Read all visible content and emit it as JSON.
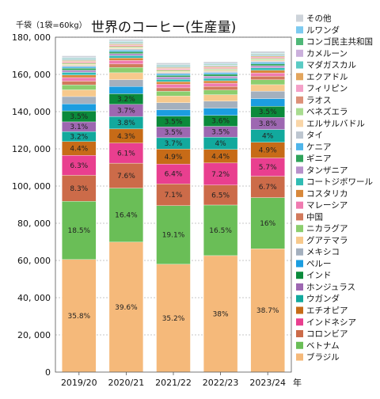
{
  "chart_data": {
    "type": "bar",
    "stacked": true,
    "title": "世界のコーヒー(生産量)",
    "ylabel": "千袋（1袋=60kg）",
    "xunit": "年",
    "categories": [
      "2019/20",
      "2020/21",
      "2021/22",
      "2022/23",
      "2023/24"
    ],
    "ylim": [
      0,
      180000
    ],
    "yticks": [
      0,
      20000,
      40000,
      60000,
      80000,
      100000,
      120000,
      140000,
      160000,
      180000
    ],
    "ytick_labels": [
      "0",
      "20, 000",
      "40, 000",
      "60, 000",
      "80, 000",
      "100, 000",
      "120, 000",
      "140, 000",
      "160, 000",
      "180, 000"
    ],
    "grid": true,
    "legend_position": "right",
    "series": [
      {
        "name": "ブラジル",
        "color": "#f5b97a",
        "values": [
          60500,
          69900,
          58000,
          62600,
          66300
        ],
        "labels": [
          "35.8%",
          "39.6%",
          "35.2%",
          "38%",
          "38.7%"
        ]
      },
      {
        "name": "ベトナム",
        "color": "#6abe57",
        "values": [
          31300,
          29000,
          31500,
          27200,
          27500
        ],
        "labels": [
          "18.5%",
          "16.4%",
          "19.1%",
          "16.5%",
          "16%"
        ]
      },
      {
        "name": "コロンビア",
        "color": "#cc6b49",
        "values": [
          14000,
          13400,
          11700,
          10700,
          11500
        ],
        "labels": [
          "8.3%",
          "7.6%",
          "7.1%",
          "6.5%",
          "6.7%"
        ]
      },
      {
        "name": "インドネシア",
        "color": "#e93f8f",
        "values": [
          10700,
          10800,
          10600,
          11900,
          9800
        ],
        "labels": [
          "6.3%",
          "6.1%",
          "6.4%",
          "7.2%",
          "5.7%"
        ]
      },
      {
        "name": "エチオピア",
        "color": "#c76b17",
        "values": [
          7400,
          7600,
          8100,
          7300,
          8400
        ],
        "labels": [
          "4.4%",
          "4.3%",
          "4.9%",
          "4.4%",
          "4.9%"
        ]
      },
      {
        "name": "ウガンダ",
        "color": "#12a99d",
        "values": [
          5400,
          6700,
          6100,
          6600,
          6900
        ],
        "labels": [
          "3.2%",
          "3.8%",
          "3.7%",
          "4%",
          "4%"
        ]
      },
      {
        "name": "ホンジュラス",
        "color": "#9d67b1",
        "values": [
          5200,
          6500,
          5800,
          5800,
          6500
        ],
        "labels": [
          "3.1%",
          "3.7%",
          "3.5%",
          "3.5%",
          "3.8%"
        ]
      },
      {
        "name": "インド",
        "color": "#0b8a3b",
        "values": [
          5900,
          5700,
          5800,
          5900,
          6000
        ],
        "labels": [
          "3.5%",
          "3.2%",
          "3.5%",
          "3.6%",
          "3.5%"
        ]
      },
      {
        "name": "ペルー",
        "color": "#1b9de0",
        "values": [
          3800,
          3900,
          3400,
          3800,
          4100
        ],
        "labels": []
      },
      {
        "name": "メキシコ",
        "color": "#a4b0be",
        "values": [
          3900,
          3700,
          3800,
          3800,
          4000
        ],
        "labels": []
      },
      {
        "name": "グアテマラ",
        "color": "#f7c98c",
        "values": [
          3600,
          3700,
          3600,
          3500,
          3500
        ],
        "labels": []
      },
      {
        "name": "ニカラグア",
        "color": "#8cce6e",
        "values": [
          2700,
          2800,
          2600,
          2500,
          2600
        ],
        "labels": []
      },
      {
        "name": "中国",
        "color": "#d27a5c",
        "values": [
          2000,
          1900,
          1800,
          1900,
          1900
        ],
        "labels": []
      },
      {
        "name": "マレーシア",
        "color": "#f07bb0",
        "values": [
          1900,
          1900,
          1900,
          1800,
          1800
        ],
        "labels": []
      },
      {
        "name": "コスタリカ",
        "color": "#d8883a",
        "values": [
          1400,
          1300,
          1400,
          1300,
          1400
        ],
        "labels": []
      },
      {
        "name": "コートジボワール",
        "color": "#30bcb4",
        "values": [
          1400,
          1300,
          1300,
          1300,
          1300
        ],
        "labels": []
      },
      {
        "name": "タンザニア",
        "color": "#b891cb",
        "values": [
          1200,
          1100,
          1200,
          1200,
          1200
        ],
        "labels": []
      },
      {
        "name": "ギニア",
        "color": "#2fa35a",
        "values": [
          1000,
          1000,
          900,
          1000,
          1000
        ],
        "labels": []
      },
      {
        "name": "ケニア",
        "color": "#4fb5ea",
        "values": [
          800,
          800,
          800,
          800,
          800
        ],
        "labels": []
      },
      {
        "name": "タイ",
        "color": "#bdc6d0",
        "values": [
          700,
          700,
          700,
          700,
          700
        ],
        "labels": []
      },
      {
        "name": "エルサルバドル",
        "color": "#f9d6a8",
        "values": [
          600,
          600,
          600,
          600,
          600
        ],
        "labels": []
      },
      {
        "name": "ベネズエラ",
        "color": "#a9dc90",
        "values": [
          600,
          600,
          600,
          600,
          600
        ],
        "labels": []
      },
      {
        "name": "ラオス",
        "color": "#dd9178",
        "values": [
          500,
          500,
          500,
          500,
          500
        ],
        "labels": []
      },
      {
        "name": "フィリピン",
        "color": "#f4a0c8",
        "values": [
          500,
          500,
          500,
          500,
          500
        ],
        "labels": []
      },
      {
        "name": "エクアドル",
        "color": "#e3a55d",
        "values": [
          500,
          500,
          500,
          500,
          500
        ],
        "labels": []
      },
      {
        "name": "マダガスカル",
        "color": "#5acbc4",
        "values": [
          400,
          400,
          400,
          400,
          400
        ],
        "labels": []
      },
      {
        "name": "カメルーン",
        "color": "#cbb0dc",
        "values": [
          400,
          400,
          400,
          400,
          400
        ],
        "labels": []
      },
      {
        "name": "コンゴ民主共和国",
        "color": "#4fb878",
        "values": [
          400,
          400,
          400,
          400,
          400
        ],
        "labels": []
      },
      {
        "name": "ルワンダ",
        "color": "#7ccaf0",
        "values": [
          300,
          300,
          300,
          300,
          300
        ],
        "labels": []
      },
      {
        "name": "その他",
        "color": "#cdd3da",
        "values": [
          1000,
          1000,
          1000,
          1000,
          1000
        ],
        "labels": []
      }
    ]
  }
}
